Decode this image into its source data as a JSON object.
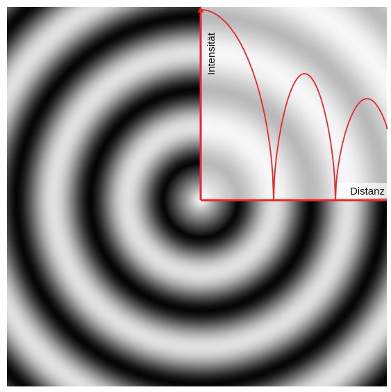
{
  "diagram": {
    "x_axis_label": "Distanz",
    "y_axis_label": "Intensität",
    "colors": {
      "curve": "#e8262b",
      "axes": "#e8262b",
      "ring_light": "#ffffff",
      "ring_dark": "#000000",
      "frame": "#ffffff"
    }
  }
}
